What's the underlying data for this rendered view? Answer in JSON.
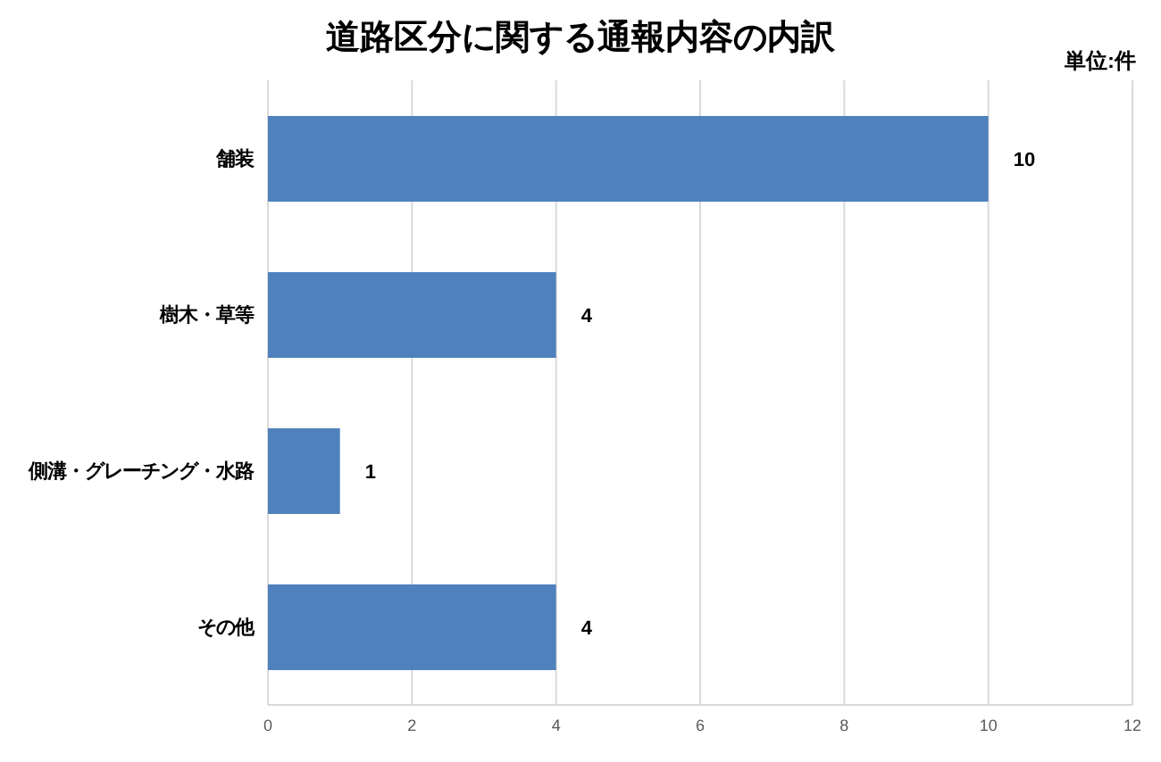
{
  "chart_data": {
    "type": "bar",
    "orientation": "horizontal",
    "title": "道路区分に関する通報内容の内訳",
    "annotations": [
      "単位:件"
    ],
    "categories": [
      "舗装",
      "樹木・草等",
      "側溝・グレーチング・水路",
      "その他"
    ],
    "values": [
      10,
      4,
      1,
      4
    ],
    "color": "#4f81bd",
    "xlim": [
      0,
      12
    ],
    "xticks": [
      0,
      2,
      4,
      6,
      8,
      10,
      12
    ],
    "grid": "x",
    "data_labels": true
  }
}
